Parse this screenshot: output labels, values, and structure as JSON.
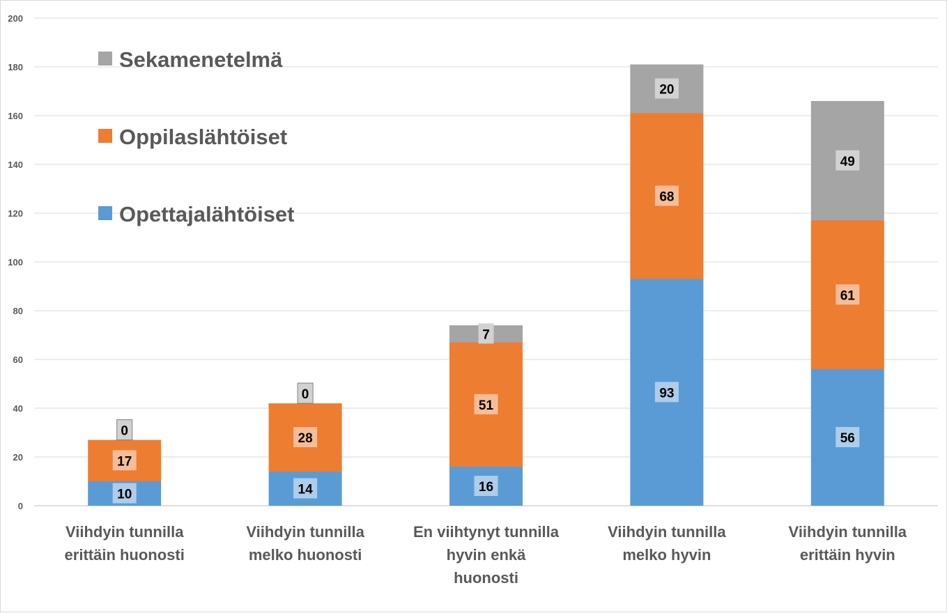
{
  "chart_data": {
    "type": "bar",
    "stacked": true,
    "categories": [
      [
        "Viihdyin tunnilla",
        "erittäin huonosti"
      ],
      [
        "Viihdyin tunnilla",
        "melko huonosti"
      ],
      [
        "En viihtynyt tunnilla",
        "hyvin enkä",
        "huonosti"
      ],
      [
        "Viihdyin tunnilla",
        "melko hyvin"
      ],
      [
        "Viihdyin tunnilla",
        "erittäin hyvin"
      ]
    ],
    "series": [
      {
        "name": "Opettajalähtöiset",
        "color": "#5b9bd5",
        "label_bg": "#adcdea",
        "values": [
          10,
          14,
          16,
          93,
          56
        ]
      },
      {
        "name": "Oppilaslähtöiset",
        "color": "#ed7d31",
        "label_bg": "#f6be98",
        "values": [
          17,
          28,
          51,
          68,
          61
        ]
      },
      {
        "name": "Sekamenetelmä",
        "color": "#a5a5a5",
        "label_bg": "#d2d2d2",
        "values": [
          0,
          0,
          7,
          20,
          49
        ]
      }
    ],
    "legend_order": [
      "Sekamenetelmä",
      "Oppilaslähtöiset",
      "Opettajalähtöiset"
    ],
    "legend_position": "top-left",
    "ylim": [
      0,
      200
    ],
    "yticks": [
      0,
      20,
      40,
      60,
      80,
      100,
      120,
      140,
      160,
      180,
      200
    ],
    "grid": true,
    "title": "",
    "xlabel": "",
    "ylabel": ""
  }
}
